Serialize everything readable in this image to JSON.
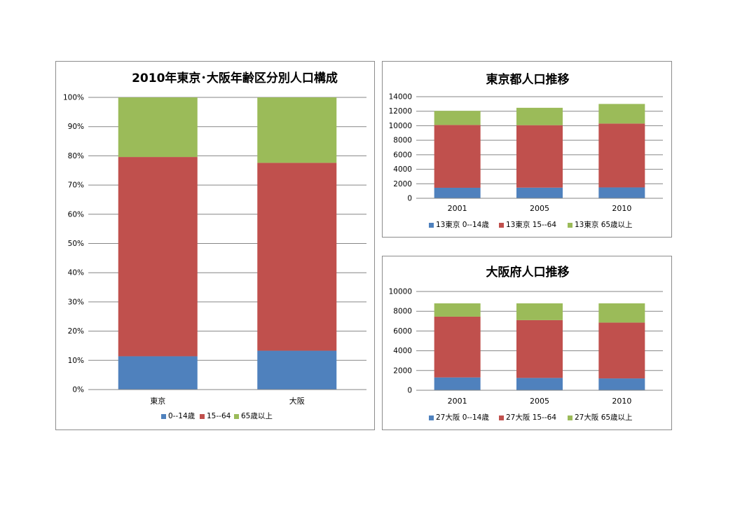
{
  "colors": {
    "young": "#4f81bd",
    "working": "#c0504d",
    "elderly": "#9bbb59",
    "grid": "#868686",
    "border": "#8c8c8c"
  },
  "chart_data": [
    {
      "type": "bar",
      "stacked": "percent",
      "title": "2010年東京･大阪年齢区分別人口構成",
      "categories": [
        "東京",
        "大阪"
      ],
      "series": [
        {
          "name": "0--14歳",
          "values": [
            11.4,
            13.3
          ]
        },
        {
          "name": "15--64",
          "values": [
            68.2,
            64.3
          ]
        },
        {
          "name": "65歳以上",
          "values": [
            20.4,
            22.4
          ]
        }
      ],
      "ylim": [
        0,
        100
      ],
      "yticks": [
        "0%",
        "10%",
        "20%",
        "30%",
        "40%",
        "50%",
        "60%",
        "70%",
        "80%",
        "90%",
        "100%"
      ],
      "grid": true,
      "legend": "bottom"
    },
    {
      "type": "bar",
      "stacked": "normal",
      "title": "東京都人口推移",
      "categories": [
        "2001",
        "2005",
        "2010"
      ],
      "series": [
        {
          "name": "13東京 0--14歳",
          "values": [
            1450,
            1470,
            1500
          ]
        },
        {
          "name": "13東京 15--64",
          "values": [
            8650,
            8600,
            8800
          ]
        },
        {
          "name": "13東京 65歳以上",
          "values": [
            1950,
            2400,
            2700
          ]
        }
      ],
      "ylim": [
        0,
        14000
      ],
      "yticks": [
        "0",
        "2000",
        "4000",
        "6000",
        "8000",
        "10000",
        "12000",
        "14000"
      ],
      "grid": true,
      "legend": "bottom"
    },
    {
      "type": "bar",
      "stacked": "normal",
      "title": "大阪府人口推移",
      "categories": [
        "2001",
        "2005",
        "2010"
      ],
      "series": [
        {
          "name": "27大阪 0--14歳",
          "values": [
            1300,
            1250,
            1200
          ]
        },
        {
          "name": "27大阪 15--64",
          "values": [
            6150,
            5850,
            5650
          ]
        },
        {
          "name": "27大阪 65歳以上",
          "values": [
            1350,
            1700,
            1950
          ]
        }
      ],
      "ylim": [
        0,
        10000
      ],
      "yticks": [
        "0",
        "2000",
        "4000",
        "6000",
        "8000",
        "10000"
      ],
      "grid": true,
      "legend": "bottom"
    }
  ]
}
